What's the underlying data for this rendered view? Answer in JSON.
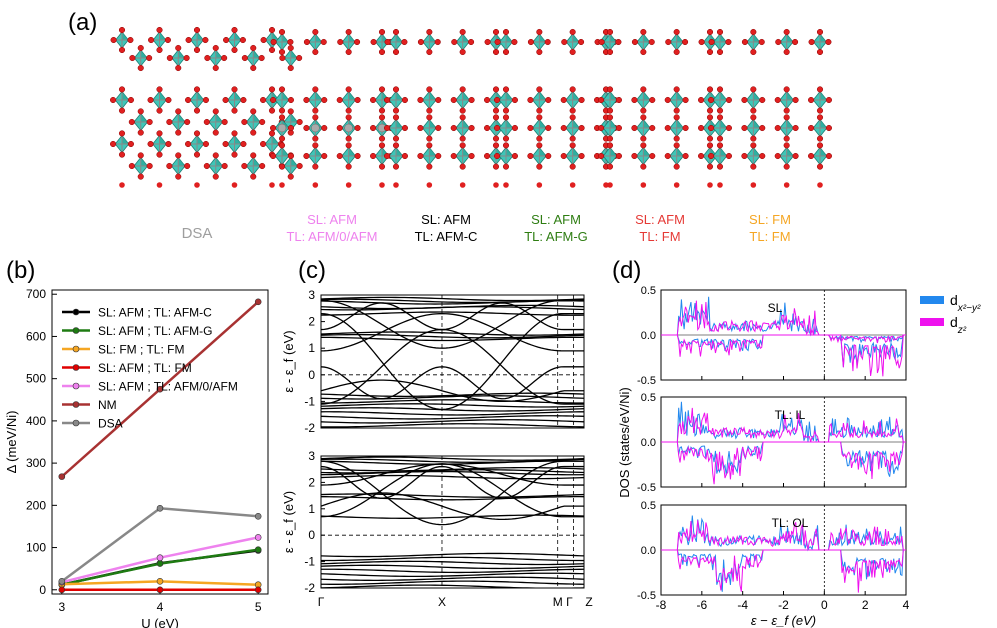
{
  "panel_labels": {
    "a": "(a)",
    "b": "(b)",
    "c": "(c)",
    "d": "(d)"
  },
  "structures": [
    {
      "id": "dsa",
      "line1": "DSA",
      "line2": "",
      "color1": "#9e9e9e",
      "color2": "#9e9e9e"
    },
    {
      "id": "sl-afm-tl-afm0afm",
      "line1": "SL: AFM",
      "line2": "TL: AFM/0/AFM",
      "color1": "#ee82ee",
      "color2": "#ee82ee"
    },
    {
      "id": "sl-afm-tl-afmc",
      "line1": "SL: AFM",
      "line2": "TL: AFM-C",
      "color1": "#000000",
      "color2": "#000000"
    },
    {
      "id": "sl-afm-tl-afmg",
      "line1": "SL: AFM",
      "line2": "TL: AFM-G",
      "color1": "#2e7d12",
      "color2": "#2e7d12"
    },
    {
      "id": "sl-afm-tl-fm",
      "line1": "SL: AFM",
      "line2": "TL: FM",
      "color1": "#e53935",
      "color2": "#e53935"
    },
    {
      "id": "sl-fm-tl-fm",
      "line1": "SL: FM",
      "line2": "TL: FM",
      "color1": "#f5a623",
      "color2": "#f5a623"
    }
  ],
  "chart_data": [
    {
      "id": "b",
      "type": "line",
      "xlabel": "U (eV)",
      "ylabel": "Δ (meV/Ni)",
      "xlim": [
        2.9,
        5.1
      ],
      "ylim": [
        -10,
        710
      ],
      "xticks": [
        3,
        4,
        5
      ],
      "yticks": [
        0,
        100,
        200,
        300,
        400,
        500,
        600,
        700
      ],
      "x": [
        3,
        4,
        5
      ],
      "series": [
        {
          "name": "SL: AFM ; TL: AFM-C",
          "color": "#000000",
          "values": [
            12,
            63,
            93
          ]
        },
        {
          "name": "SL: AFM ; TL: AFM-G",
          "color": "#1e7b12",
          "values": [
            12,
            62,
            95
          ]
        },
        {
          "name": "SL: FM ; TL: FM",
          "color": "#f5a623",
          "values": [
            13,
            20,
            12
          ]
        },
        {
          "name": "SL: AFM ; TL: FM",
          "color": "#e00000",
          "values": [
            0,
            0,
            0
          ]
        },
        {
          "name": "SL: AFM ; TL: AFM/0/AFM",
          "color": "#ee82ee",
          "values": [
            18,
            76,
            124
          ]
        },
        {
          "name": "NM",
          "color": "#a83232",
          "values": [
            268,
            475,
            682
          ]
        },
        {
          "name": "DSA",
          "color": "#888888",
          "values": [
            20,
            193,
            174
          ]
        }
      ]
    },
    {
      "id": "c",
      "type": "line",
      "subtype": "band-structure",
      "ylabel": "ε - ε_f (eV)",
      "ylim": [
        -2,
        3
      ],
      "yticks": [
        -2,
        -1,
        0,
        1,
        2,
        3
      ],
      "kpoints": [
        "Γ",
        "X",
        "M",
        "Γ",
        "Z"
      ],
      "kpoint_positions": [
        0,
        0.46,
        0.9,
        0.96,
        1.0
      ],
      "panels": [
        {
          "name": "top",
          "flat_bands": [
            2.85,
            2.78,
            2.72,
            2.55,
            2.5,
            2.3,
            1.55,
            1.45,
            1.35,
            -0.75,
            -0.85,
            -1.0,
            -1.15,
            -1.3,
            -1.45,
            -1.6,
            -1.75,
            -1.9
          ],
          "dispersive_bands": [
            {
              "center": 0.5,
              "amp": 1.8,
              "kind": "cos"
            },
            {
              "center": 0.3,
              "amp": -1.4,
              "kind": "cos"
            },
            {
              "center": 1.9,
              "amp": 0.9,
              "kind": "cos"
            },
            {
              "center": -0.3,
              "amp": 0.6,
              "kind": "cos2"
            },
            {
              "center": 1.6,
              "amp": -0.7,
              "kind": "cos"
            },
            {
              "center": -0.6,
              "amp": 0.4,
              "kind": "sin"
            },
            {
              "center": 2.2,
              "amp": -0.5,
              "kind": "cos2"
            }
          ]
        },
        {
          "name": "bottom",
          "flat_bands": [
            2.9,
            2.82,
            2.75,
            2.5,
            2.42,
            2.35,
            2.2,
            1.5,
            1.4,
            0.7,
            -0.75,
            -0.9,
            -1.05,
            -1.2,
            -1.35,
            -1.5,
            -1.65,
            -1.8,
            -1.95
          ],
          "dispersive_bands": [
            {
              "center": 1.6,
              "amp": 1.2,
              "kind": "cos"
            },
            {
              "center": 1.7,
              "amp": -1.0,
              "kind": "cos"
            },
            {
              "center": 2.0,
              "amp": 0.6,
              "kind": "cos2"
            },
            {
              "center": 1.1,
              "amp": 0.5,
              "kind": "sin"
            },
            {
              "center": 2.3,
              "amp": -0.4,
              "kind": "cos"
            }
          ]
        }
      ]
    },
    {
      "id": "d",
      "type": "line",
      "subtype": "density-of-states",
      "xlabel": "ε − ε_f (eV)",
      "ylabel": "DOS (states/eV/Ni)",
      "xlim": [
        -8,
        4
      ],
      "xticks": [
        -8,
        -6,
        -4,
        -2,
        0,
        2,
        4
      ],
      "ylim": [
        -0.5,
        0.5
      ],
      "yticks": [
        -0.5,
        0.0,
        0.5
      ],
      "legend": [
        {
          "name": "d_{x²−y²}",
          "base": "d",
          "sub": "x²−y²",
          "color": "#2288ee"
        },
        {
          "name": "d_{z²}",
          "base": "d",
          "sub": "z²",
          "color": "#ee11ee"
        }
      ],
      "legend_placement": "outside-top-right",
      "panels": [
        {
          "label": "SL"
        },
        {
          "label": "TL: IL"
        },
        {
          "label": "TL: OL"
        }
      ]
    }
  ]
}
